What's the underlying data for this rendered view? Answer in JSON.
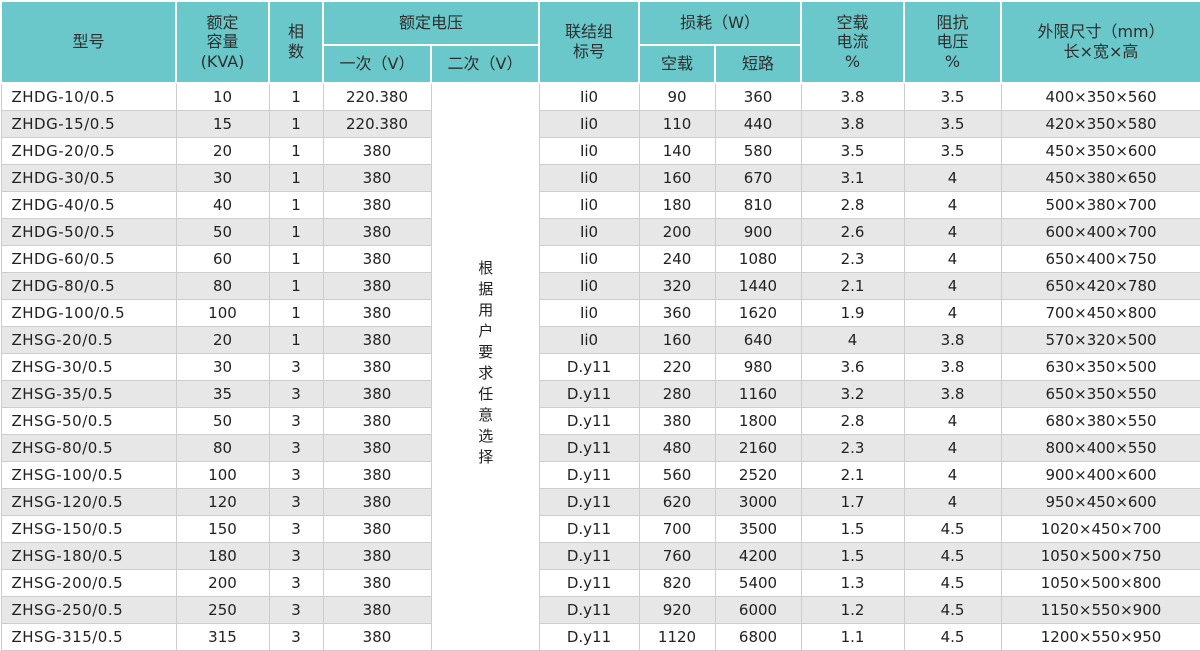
{
  "colors": {
    "header_bg": "#6bc8ca",
    "row_alt_bg": "#e7e7e7",
    "row_bg": "#ffffff",
    "grid_line": "#cdcdcd",
    "header_divider": "#ffffff",
    "text": "#222222"
  },
  "table": {
    "headers": {
      "model": "型号",
      "capacity": "额定\n容量\n(KVA)",
      "phases": "相\n数",
      "rated_voltage": "额定电压",
      "primary": "一次（V）",
      "secondary": "二次（V）",
      "vector_group": "联结组\n标号",
      "loss": "损耗（W）",
      "no_load_loss": "空载",
      "short_circuit_loss": "短路",
      "no_load_current": "空载\n电流\n%",
      "impedance_voltage": "阻抗\n电压\n%",
      "dimensions": "外限尺寸（mm）\n长×宽×高"
    },
    "secondary_note": "根据用户要求任意选择",
    "rows": [
      {
        "model": "ZHDG-10/0.5",
        "capacity": "10",
        "phases": "1",
        "primary": "220.380",
        "group": "Ii0",
        "no_load": "90",
        "short": "360",
        "current": "3.8",
        "impedance": "3.5",
        "dims": "400×350×560"
      },
      {
        "model": "ZHDG-15/0.5",
        "capacity": "15",
        "phases": "1",
        "primary": "220.380",
        "group": "Ii0",
        "no_load": "110",
        "short": "440",
        "current": "3.8",
        "impedance": "3.5",
        "dims": "420×350×580"
      },
      {
        "model": "ZHDG-20/0.5",
        "capacity": "20",
        "phases": "1",
        "primary": "380",
        "group": "Ii0",
        "no_load": "140",
        "short": "580",
        "current": "3.5",
        "impedance": "3.5",
        "dims": "450×350×600"
      },
      {
        "model": "ZHDG-30/0.5",
        "capacity": "30",
        "phases": "1",
        "primary": "380",
        "group": "Ii0",
        "no_load": "160",
        "short": "670",
        "current": "3.1",
        "impedance": "4",
        "dims": "450×380×650"
      },
      {
        "model": "ZHDG-40/0.5",
        "capacity": "40",
        "phases": "1",
        "primary": "380",
        "group": "Ii0",
        "no_load": "180",
        "short": "810",
        "current": "2.8",
        "impedance": "4",
        "dims": "500×380×700"
      },
      {
        "model": "ZHDG-50/0.5",
        "capacity": "50",
        "phases": "1",
        "primary": "380",
        "group": "Ii0",
        "no_load": "200",
        "short": "900",
        "current": "2.6",
        "impedance": "4",
        "dims": "600×400×700"
      },
      {
        "model": "ZHDG-60/0.5",
        "capacity": "60",
        "phases": "1",
        "primary": "380",
        "group": "Ii0",
        "no_load": "240",
        "short": "1080",
        "current": "2.3",
        "impedance": "4",
        "dims": "650×400×750"
      },
      {
        "model": "ZHDG-80/0.5",
        "capacity": "80",
        "phases": "1",
        "primary": "380",
        "group": "Ii0",
        "no_load": "320",
        "short": "1440",
        "current": "2.1",
        "impedance": "4",
        "dims": "650×420×780"
      },
      {
        "model": "ZHDG-100/0.5",
        "capacity": "100",
        "phases": "1",
        "primary": "380",
        "group": "Ii0",
        "no_load": "360",
        "short": "1620",
        "current": "1.9",
        "impedance": "4",
        "dims": "700×450×800"
      },
      {
        "model": "ZHSG-20/0.5",
        "capacity": "20",
        "phases": "1",
        "primary": "380",
        "group": "Ii0",
        "no_load": "160",
        "short": "640",
        "current": "4",
        "impedance": "3.8",
        "dims": "570×320×500"
      },
      {
        "model": "ZHSG-30/0.5",
        "capacity": "30",
        "phases": "3",
        "primary": "380",
        "group": "D.y11",
        "no_load": "220",
        "short": "980",
        "current": "3.6",
        "impedance": "3.8",
        "dims": "630×350×500"
      },
      {
        "model": "ZHSG-35/0.5",
        "capacity": "35",
        "phases": "3",
        "primary": "380",
        "group": "D.y11",
        "no_load": "280",
        "short": "1160",
        "current": "3.2",
        "impedance": "3.8",
        "dims": "650×350×550"
      },
      {
        "model": "ZHSG-50/0.5",
        "capacity": "50",
        "phases": "3",
        "primary": "380",
        "group": "D.y11",
        "no_load": "380",
        "short": "1800",
        "current": "2.8",
        "impedance": "4",
        "dims": "680×380×550"
      },
      {
        "model": "ZHSG-80/0.5",
        "capacity": "80",
        "phases": "3",
        "primary": "380",
        "group": "D.y11",
        "no_load": "480",
        "short": "2160",
        "current": "2.3",
        "impedance": "4",
        "dims": "800×400×550"
      },
      {
        "model": "ZHSG-100/0.5",
        "capacity": "100",
        "phases": "3",
        "primary": "380",
        "group": "D.y11",
        "no_load": "560",
        "short": "2520",
        "current": "2.1",
        "impedance": "4",
        "dims": "900×400×600"
      },
      {
        "model": "ZHSG-120/0.5",
        "capacity": "120",
        "phases": "3",
        "primary": "380",
        "group": "D.y11",
        "no_load": "620",
        "short": "3000",
        "current": "1.7",
        "impedance": "4",
        "dims": "950×450×600"
      },
      {
        "model": "ZHSG-150/0.5",
        "capacity": "150",
        "phases": "3",
        "primary": "380",
        "group": "D.y11",
        "no_load": "700",
        "short": "3500",
        "current": "1.5",
        "impedance": "4.5",
        "dims": "1020×450×700"
      },
      {
        "model": "ZHSG-180/0.5",
        "capacity": "180",
        "phases": "3",
        "primary": "380",
        "group": "D.y11",
        "no_load": "760",
        "short": "4200",
        "current": "1.5",
        "impedance": "4.5",
        "dims": "1050×500×750"
      },
      {
        "model": "ZHSG-200/0.5",
        "capacity": "200",
        "phases": "3",
        "primary": "380",
        "group": "D.y11",
        "no_load": "820",
        "short": "5400",
        "current": "1.3",
        "impedance": "4.5",
        "dims": "1050×500×800"
      },
      {
        "model": "ZHSG-250/0.5",
        "capacity": "250",
        "phases": "3",
        "primary": "380",
        "group": "D.y11",
        "no_load": "920",
        "short": "6000",
        "current": "1.2",
        "impedance": "4.5",
        "dims": "1150×550×900"
      },
      {
        "model": "ZHSG-315/0.5",
        "capacity": "315",
        "phases": "3",
        "primary": "380",
        "group": "D.y11",
        "no_load": "1120",
        "short": "6800",
        "current": "1.1",
        "impedance": "4.5",
        "dims": "1200×550×950"
      }
    ]
  }
}
